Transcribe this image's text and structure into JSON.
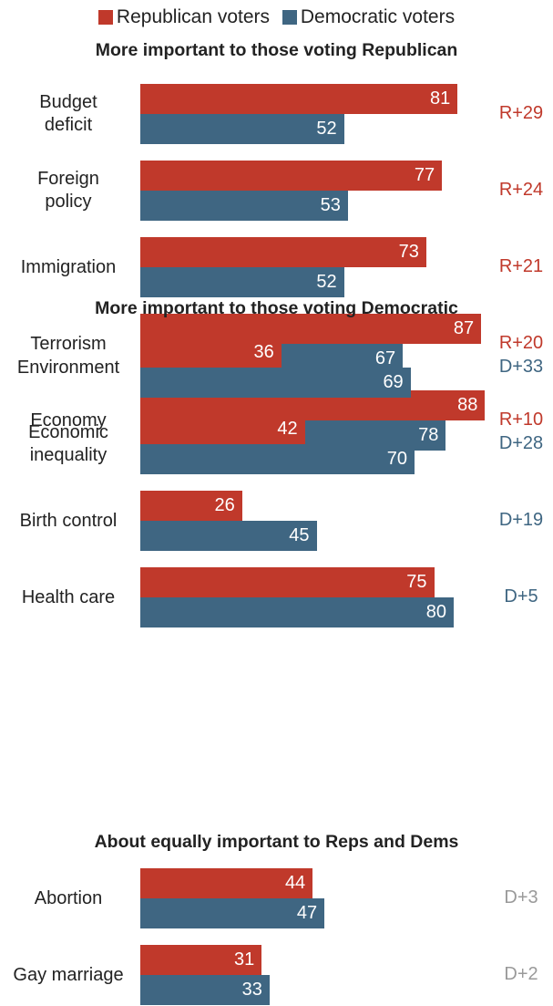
{
  "legend": [
    {
      "name": "Republican voters",
      "color": "#c0392b"
    },
    {
      "name": "Democratic voters",
      "color": "#3f6682"
    }
  ],
  "gap_colors": {
    "R": "#c0392b",
    "D": "#3f6682",
    "neutral": "#9a9a9a"
  },
  "chart_data": {
    "type": "bar",
    "orientation": "horizontal",
    "series_names": [
      "Republican voters",
      "Democratic voters"
    ],
    "sections": [
      {
        "title": "More important to those voting Republican",
        "gap_style": "R",
        "categories": [
          {
            "label": [
              "Budget",
              "deficit"
            ],
            "rep": 81,
            "dem": 52,
            "gap": "R+29"
          },
          {
            "label": [
              "Foreign",
              "policy"
            ],
            "rep": 77,
            "dem": 53,
            "gap": "R+24"
          },
          {
            "label": [
              "Immigration"
            ],
            "rep": 73,
            "dem": 52,
            "gap": "R+21"
          },
          {
            "label": [
              "Terrorism"
            ],
            "rep": 87,
            "dem": 67,
            "gap": "R+20"
          },
          {
            "label": [
              "Economy"
            ],
            "rep": 88,
            "dem": 78,
            "gap": "R+10"
          }
        ]
      },
      {
        "title": "More important to those voting Democratic",
        "gap_style": "D",
        "categories": [
          {
            "label": [
              "Environment"
            ],
            "rep": 36,
            "dem": 69,
            "gap": "D+33"
          },
          {
            "label": [
              "Economic",
              "inequality"
            ],
            "rep": 42,
            "dem": 70,
            "gap": "D+28"
          },
          {
            "label": [
              "Birth control"
            ],
            "rep": 26,
            "dem": 45,
            "gap": "D+19"
          },
          {
            "label": [
              "Health care"
            ],
            "rep": 75,
            "dem": 80,
            "gap": "D+5"
          }
        ]
      },
      {
        "title": "About equally important to Reps and Dems",
        "gap_style": "neutral",
        "categories": [
          {
            "label": [
              "Abortion"
            ],
            "rep": 44,
            "dem": 47,
            "gap": "D+3"
          },
          {
            "label": [
              "Gay marriage"
            ],
            "rep": 31,
            "dem": 33,
            "gap": "D+2"
          }
        ]
      }
    ]
  }
}
